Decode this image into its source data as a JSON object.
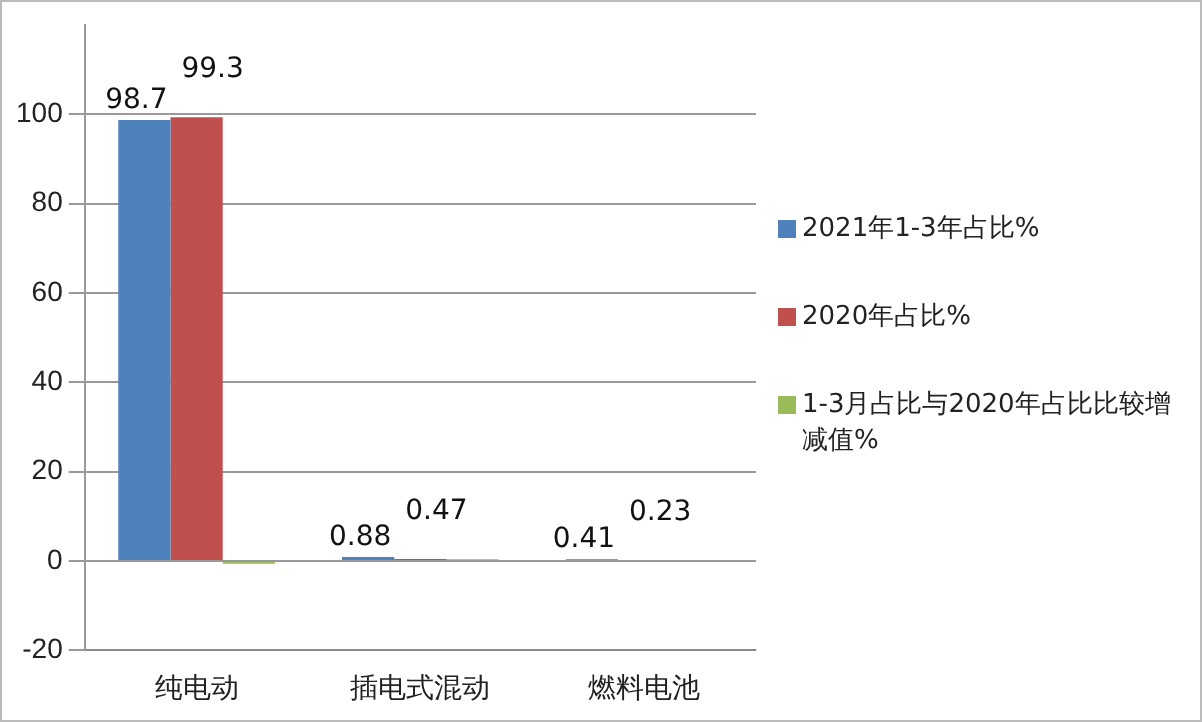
{
  "chart_data": {
    "type": "bar",
    "categories": [
      "纯电动",
      "插电式混动",
      "燃料电池"
    ],
    "series": [
      {
        "name": "2021年1-3年占比%",
        "color": "#4f81bd",
        "values": [
          98.7,
          0.88,
          0.41
        ],
        "value_labels": [
          "98.7",
          "0.88",
          "0.41"
        ]
      },
      {
        "name": "2020年占比%",
        "color": "#c0504d",
        "values": [
          99.3,
          0.47,
          0.23
        ],
        "value_labels": [
          "99.3",
          "0.47",
          "0.23"
        ]
      },
      {
        "name": "1-3月占比与2020年占比比较增减值%",
        "color": "#9bbb59",
        "values": [
          -0.6,
          0.4,
          null
        ]
      }
    ],
    "ylim": [
      -20,
      120
    ],
    "yticks": [
      -20,
      0,
      20,
      40,
      60,
      80,
      100
    ],
    "grid": "y",
    "legend": "right"
  }
}
